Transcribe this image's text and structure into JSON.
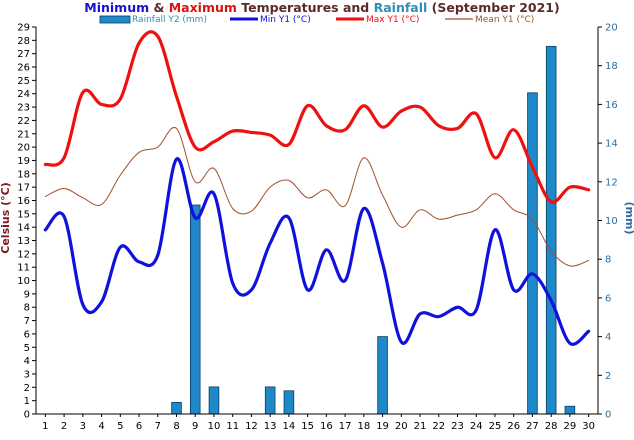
{
  "chart_data": {
    "type": "line",
    "title_parts": [
      {
        "text": "Minimum",
        "color": "#1a10d4"
      },
      {
        "text": " & ",
        "color": "#5c2a2a"
      },
      {
        "text": "Maximum",
        "color": "#dd1111"
      },
      {
        "text": " Temperatures and ",
        "color": "#5c2a2a"
      },
      {
        "text": "Rainfall",
        "color": "#2f8fb8"
      },
      {
        "text": " (September 2021)",
        "color": "#5c2a2a"
      }
    ],
    "ylabel": "Celsius (°C)",
    "y2label": "(mm)",
    "ylim": [
      0,
      29
    ],
    "y2lim": [
      0,
      20
    ],
    "yticks": [
      0,
      1,
      2,
      3,
      4,
      5,
      6,
      7,
      8,
      9,
      10,
      11,
      12,
      13,
      14,
      15,
      16,
      17,
      18,
      19,
      20,
      21,
      22,
      23,
      24,
      25,
      26,
      27,
      28,
      29
    ],
    "y2ticks": [
      0,
      2,
      4,
      6,
      8,
      10,
      12,
      14,
      16,
      18,
      20
    ],
    "x": [
      1,
      2,
      3,
      4,
      5,
      6,
      7,
      8,
      9,
      10,
      11,
      12,
      13,
      14,
      15,
      16,
      17,
      18,
      19,
      20,
      21,
      22,
      23,
      24,
      25,
      26,
      27,
      28,
      29,
      30
    ],
    "grid": false,
    "legend_position": "top",
    "rainfall": {
      "name": "Rainfall Y2 (mm)",
      "axis": "y2",
      "color": "#1e88c8",
      "values": [
        0,
        0,
        0,
        0,
        0,
        0,
        0,
        0.6,
        10.8,
        1.4,
        0,
        0,
        1.4,
        1.2,
        0,
        0,
        0,
        0,
        4.0,
        0,
        0,
        0,
        0,
        0,
        0,
        0,
        16.6,
        19.0,
        0.4,
        0
      ]
    },
    "series": [
      {
        "name": "Min Y1 (°C)",
        "color": "#1111dd",
        "width": 3.2,
        "values": [
          13.8,
          14.8,
          8.2,
          8.4,
          12.5,
          11.4,
          11.9,
          19.1,
          14.7,
          16.5,
          9.8,
          9.3,
          12.8,
          14.7,
          9.3,
          12.3,
          10.0,
          15.4,
          11.3,
          5.4,
          7.5,
          7.3,
          8.0,
          7.8,
          13.8,
          9.3,
          10.5,
          8.5,
          5.3,
          6.2
        ]
      },
      {
        "name": "Max Y1 (°C)",
        "color": "#ee1111",
        "width": 3.2,
        "values": [
          18.7,
          19.2,
          24.1,
          23.2,
          23.6,
          27.8,
          28.3,
          23.8,
          20.0,
          20.4,
          21.2,
          21.1,
          20.9,
          20.2,
          23.1,
          21.6,
          21.3,
          23.1,
          21.5,
          22.7,
          23.0,
          21.6,
          21.4,
          22.5,
          19.2,
          21.3,
          18.5,
          15.9,
          17.0,
          16.8
        ]
      },
      {
        "name": "Mean Y1 (°C)",
        "color": "#a0522d",
        "width": 1.0,
        "values": [
          16.3,
          16.9,
          16.2,
          15.7,
          17.9,
          19.6,
          20.0,
          21.4,
          17.4,
          18.4,
          15.4,
          15.2,
          17.0,
          17.5,
          16.2,
          16.8,
          15.6,
          19.2,
          16.4,
          14.0,
          15.3,
          14.6,
          14.9,
          15.3,
          16.5,
          15.3,
          14.6,
          12.2,
          11.1,
          11.5
        ]
      }
    ]
  }
}
